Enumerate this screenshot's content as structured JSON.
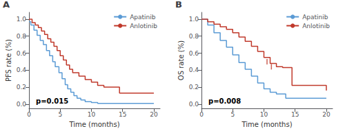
{
  "chart_data": [
    {
      "type": "step",
      "title": "A",
      "xlabel": "Time (months)",
      "ylabel": "PFS rate (%)",
      "annotations": [
        "p=0.015"
      ],
      "xlim": [
        0,
        21
      ],
      "ylim": [
        -0.05,
        1.08
      ],
      "xticks": [
        0,
        5,
        10,
        15,
        20
      ],
      "yticks": [
        {
          "value": 0,
          "label": "0.0"
        },
        0.2,
        0.4,
        0.6,
        0.8,
        {
          "value": 1,
          "label": "1.0"
        }
      ],
      "grid": false,
      "legend": "upper right",
      "series": [
        {
          "name": "Apatinib",
          "color": "#5b9bd5",
          "x": [
            0,
            0.3,
            0.8,
            1.3,
            1.8,
            2.3,
            2.8,
            3.3,
            3.8,
            4.2,
            4.8,
            5.3,
            5.8,
            6.2,
            6.7,
            7.2,
            7.7,
            8.3,
            9.0,
            10.0,
            11.0,
            13.0,
            20
          ],
          "values": [
            0.97,
            0.93,
            0.87,
            0.81,
            0.75,
            0.7,
            0.63,
            0.57,
            0.5,
            0.44,
            0.37,
            0.3,
            0.23,
            0.18,
            0.14,
            0.1,
            0.07,
            0.05,
            0.03,
            0.02,
            0.01,
            0.01,
            0.01
          ]
        },
        {
          "name": "Anlotinib",
          "color": "#c0392b",
          "x": [
            0,
            0.5,
            1.0,
            1.5,
            2.0,
            2.5,
            3.0,
            3.5,
            4.0,
            4.5,
            5.0,
            5.5,
            6.0,
            6.5,
            7.0,
            8.0,
            9.0,
            10.0,
            11.0,
            12.0,
            14.5,
            20
          ],
          "values": [
            1.0,
            0.96,
            0.93,
            0.9,
            0.86,
            0.82,
            0.77,
            0.73,
            0.68,
            0.63,
            0.57,
            0.52,
            0.46,
            0.41,
            0.37,
            0.33,
            0.29,
            0.26,
            0.22,
            0.2,
            0.13,
            0.13
          ]
        }
      ]
    },
    {
      "type": "step",
      "title": "B",
      "xlabel": "Time (months)",
      "ylabel": "OS rate (%)",
      "annotations": [
        "p=0.008"
      ],
      "xlim": [
        0,
        21
      ],
      "ylim": [
        -0.05,
        1.08
      ],
      "xticks": [
        0,
        5,
        10,
        15,
        20
      ],
      "yticks": [
        {
          "value": 0,
          "label": "0.0"
        },
        0.2,
        0.4,
        0.6,
        0.8,
        {
          "value": 1,
          "label": "1.0"
        }
      ],
      "grid": false,
      "legend": "upper right",
      "series": [
        {
          "name": "Apatinib",
          "color": "#5b9bd5",
          "x": [
            0,
            1.0,
            2.0,
            3.0,
            4.0,
            5.0,
            6.0,
            7.0,
            8.0,
            9.0,
            10.0,
            11.0,
            12.0,
            13.5,
            20
          ],
          "values": [
            1.0,
            0.93,
            0.84,
            0.75,
            0.67,
            0.58,
            0.49,
            0.41,
            0.33,
            0.25,
            0.18,
            0.14,
            0.12,
            0.07,
            0.07
          ]
        },
        {
          "name": "Anlotinib",
          "color": "#c0392b",
          "x": [
            0,
            1.0,
            2.0,
            3.0,
            4.0,
            5.0,
            6.0,
            7.0,
            8.0,
            9.0,
            10.0,
            11.0,
            12.0,
            13.0,
            14.5,
            20
          ],
          "values": [
            1.0,
            0.97,
            0.94,
            0.91,
            0.88,
            0.84,
            0.79,
            0.74,
            0.68,
            0.62,
            0.55,
            0.48,
            0.44,
            0.43,
            0.22,
            0.16
          ],
          "censor_x": [
            10.5,
            11.2
          ],
          "censor_y": [
            0.5,
            0.44
          ]
        }
      ]
    }
  ]
}
